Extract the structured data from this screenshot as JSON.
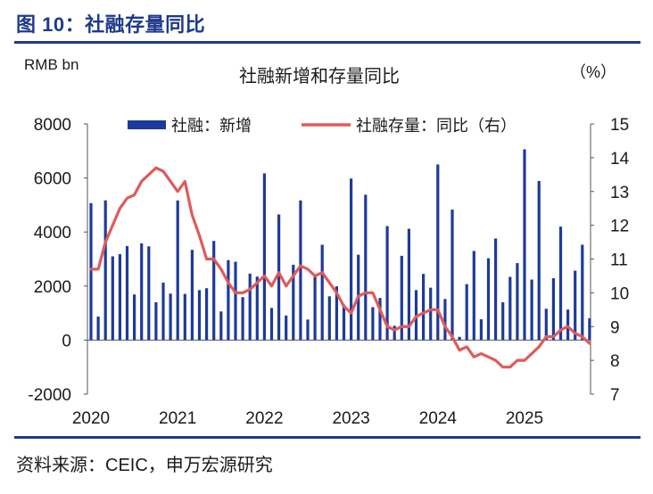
{
  "figure_title": "图 10：社融存量同比",
  "source": "资料来源：CEIC，申万宏源研究",
  "colors": {
    "accent": "#1f3a8a",
    "bar": "#1e3a9a",
    "line": "#e05a5a"
  },
  "chart_data": {
    "type": "bar",
    "title": "社融新增和存量同比",
    "left_unit": "RMB bn",
    "right_unit": "（%）",
    "ylim": [
      -2000,
      8000
    ],
    "yticks": [
      -2000,
      0,
      2000,
      4000,
      6000,
      8000
    ],
    "y2lim": [
      7,
      15
    ],
    "y2ticks": [
      7,
      8,
      9,
      10,
      11,
      12,
      13,
      14,
      15
    ],
    "xticks": [
      "2020",
      "2021",
      "2022",
      "2023",
      "2024",
      "2025"
    ],
    "legend_position": "top",
    "grid": false,
    "series": [
      {
        "name": "社融：新增",
        "type": "bar",
        "axis": "left",
        "values": [
          5070,
          870,
          5170,
          3100,
          3180,
          3480,
          1690,
          3580,
          3470,
          1400,
          2130,
          1720,
          5170,
          1710,
          3340,
          1850,
          1920,
          3670,
          1060,
          2960,
          2900,
          1590,
          2460,
          2350,
          6170,
          1190,
          4650,
          910,
          2790,
          5170,
          760,
          2430,
          3530,
          1620,
          1990,
          1310,
          5980,
          3160,
          5380,
          1220,
          1560,
          4220,
          530,
          3120,
          4120,
          1850,
          2450,
          1940,
          6500,
          1520,
          4830,
          120,
          2070,
          3300,
          770,
          3030,
          3760,
          1400,
          2340,
          2850,
          7060,
          2240,
          5890,
          1160,
          2290,
          4200,
          1130,
          2570,
          3530,
          810
        ]
      },
      {
        "name": "社融存量：同比（右）",
        "type": "line",
        "axis": "right",
        "values": [
          10.7,
          10.7,
          11.5,
          12.0,
          12.5,
          12.8,
          12.9,
          13.3,
          13.5,
          13.7,
          13.6,
          13.3,
          13.0,
          13.3,
          12.3,
          11.7,
          11.0,
          11.0,
          10.7,
          10.3,
          10.0,
          10.0,
          10.1,
          10.3,
          10.5,
          10.2,
          10.6,
          10.2,
          10.5,
          10.8,
          10.7,
          10.5,
          10.6,
          10.3,
          10.0,
          9.6,
          9.4,
          9.9,
          10.0,
          10.0,
          9.5,
          9.0,
          8.9,
          9.0,
          9.0,
          9.3,
          9.4,
          9.5,
          9.5,
          9.0,
          8.7,
          8.3,
          8.4,
          8.1,
          8.2,
          8.1,
          8.0,
          7.8,
          7.8,
          8.0,
          8.0,
          8.2,
          8.4,
          8.7,
          8.7,
          8.9,
          9.0,
          8.8,
          8.7,
          8.5
        ]
      }
    ]
  }
}
